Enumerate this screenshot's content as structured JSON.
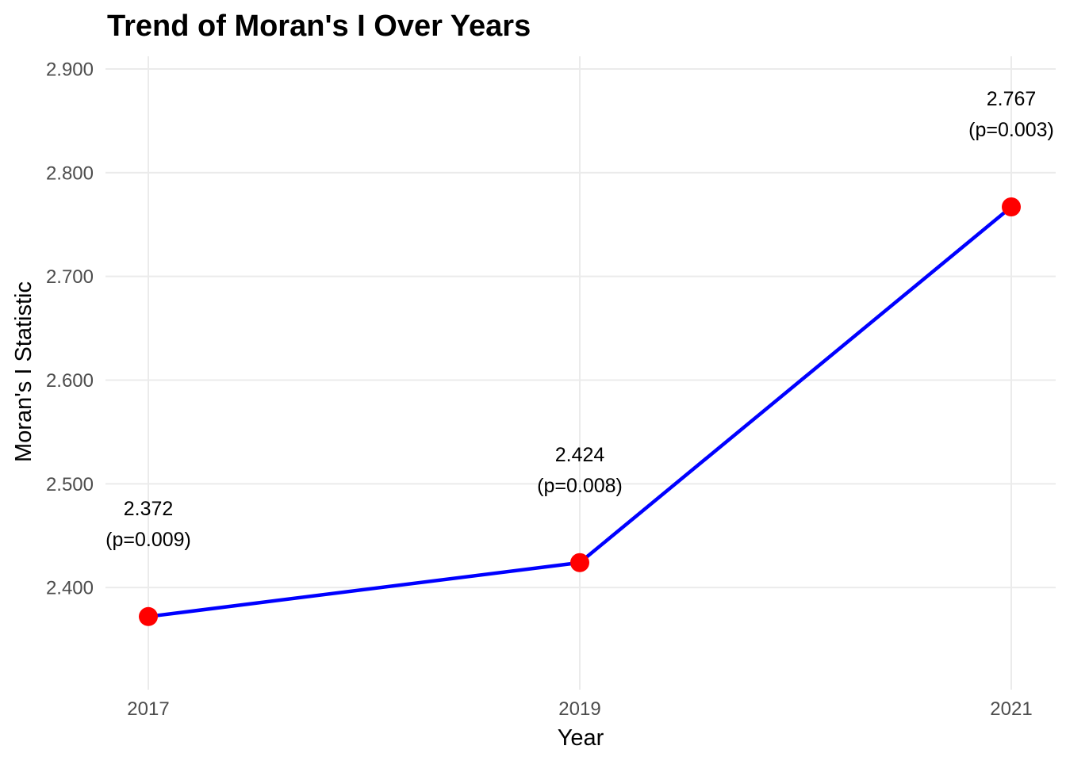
{
  "chart_data": {
    "type": "line",
    "title": "Trend of Moran's I Over Years",
    "xlabel": "Year",
    "ylabel": "Moran's I Statistic",
    "x": [
      2017,
      2019,
      2021
    ],
    "x_tick_labels": [
      "2017",
      "2019",
      "2021"
    ],
    "y_ticks": [
      2.4,
      2.5,
      2.6,
      2.7,
      2.8,
      2.9
    ],
    "y_tick_labels": [
      "2.400",
      "2.500",
      "2.600",
      "2.700",
      "2.800",
      "2.900"
    ],
    "ylim": [
      2.3,
      2.9
    ],
    "xlim": [
      2017,
      2021
    ],
    "series": [
      {
        "values": [
          2.372,
          2.424,
          2.767
        ],
        "value_labels": [
          "2.372",
          "2.424",
          "2.767"
        ],
        "p_labels": [
          "(p=0.009)",
          "(p=0.008)",
          "(p=0.003)"
        ]
      }
    ],
    "line_color": "#0000ff",
    "point_color": "#ff0000",
    "grid": true,
    "legend": "none"
  }
}
